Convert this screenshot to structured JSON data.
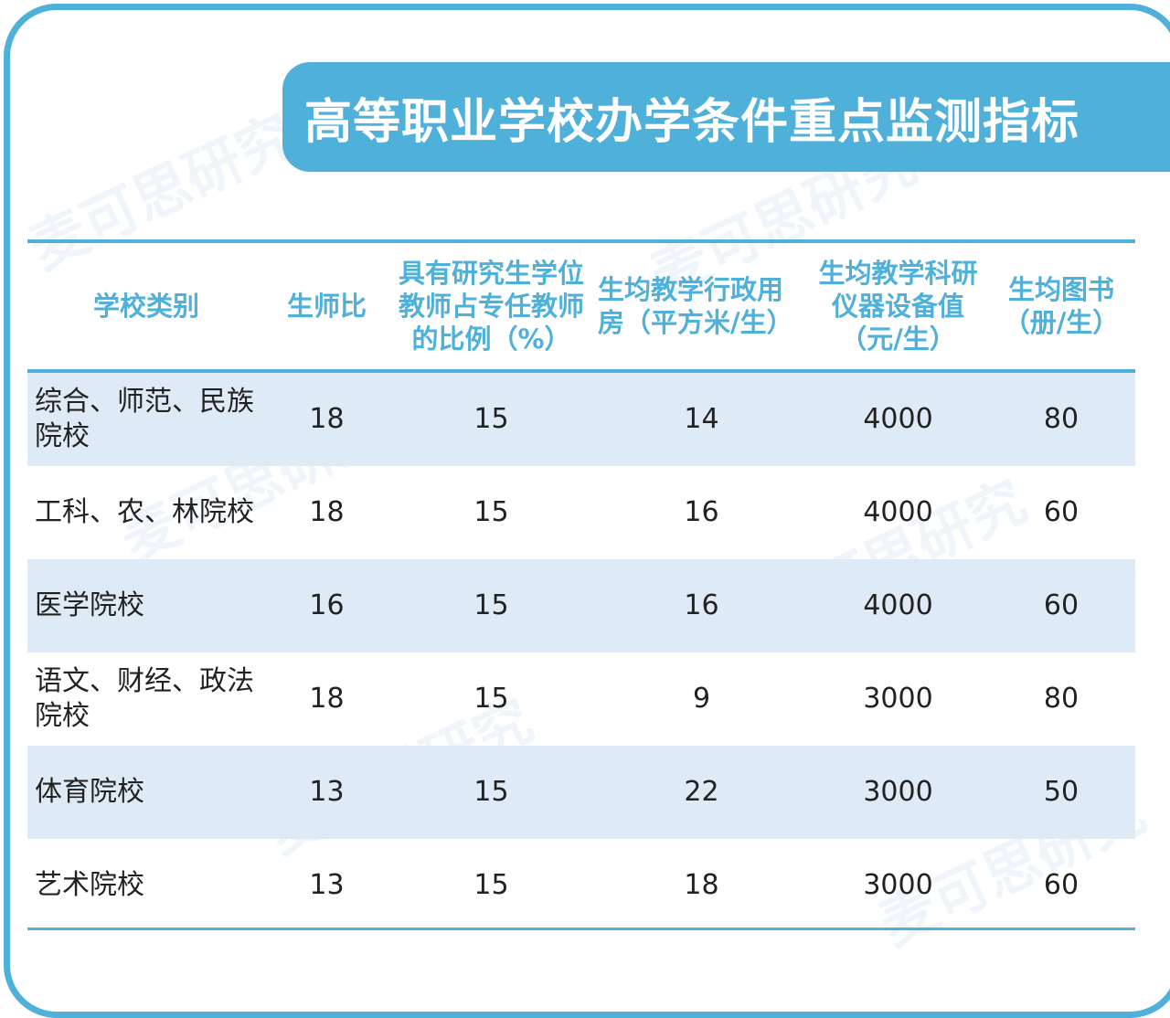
{
  "title": "高等职业学校办学条件重点监测指标",
  "watermark": "麦可思研究",
  "colors": {
    "accent": "#4fb0da",
    "row_shade": "#deebf6",
    "text": "#222222"
  },
  "table": {
    "headers": [
      "学校类别",
      "生师比",
      "具有研究生学位教师占专任教师的比例（%）",
      "生均教学行政用房（平方米/生）",
      "生均教学科研仪器设备值（元/生）",
      "生均图书（册/生）"
    ],
    "rows": [
      [
        "综合、师范、民族院校",
        "18",
        "15",
        "14",
        "4000",
        "80"
      ],
      [
        "工科、农、林院校",
        "18",
        "15",
        "16",
        "4000",
        "60"
      ],
      [
        "医学院校",
        "16",
        "15",
        "16",
        "4000",
        "60"
      ],
      [
        "语文、财经、政法院校",
        "18",
        "15",
        "9",
        "3000",
        "80"
      ],
      [
        "体育院校",
        "13",
        "15",
        "22",
        "3000",
        "50"
      ],
      [
        "艺术院校",
        "13",
        "15",
        "18",
        "3000",
        "60"
      ]
    ]
  }
}
